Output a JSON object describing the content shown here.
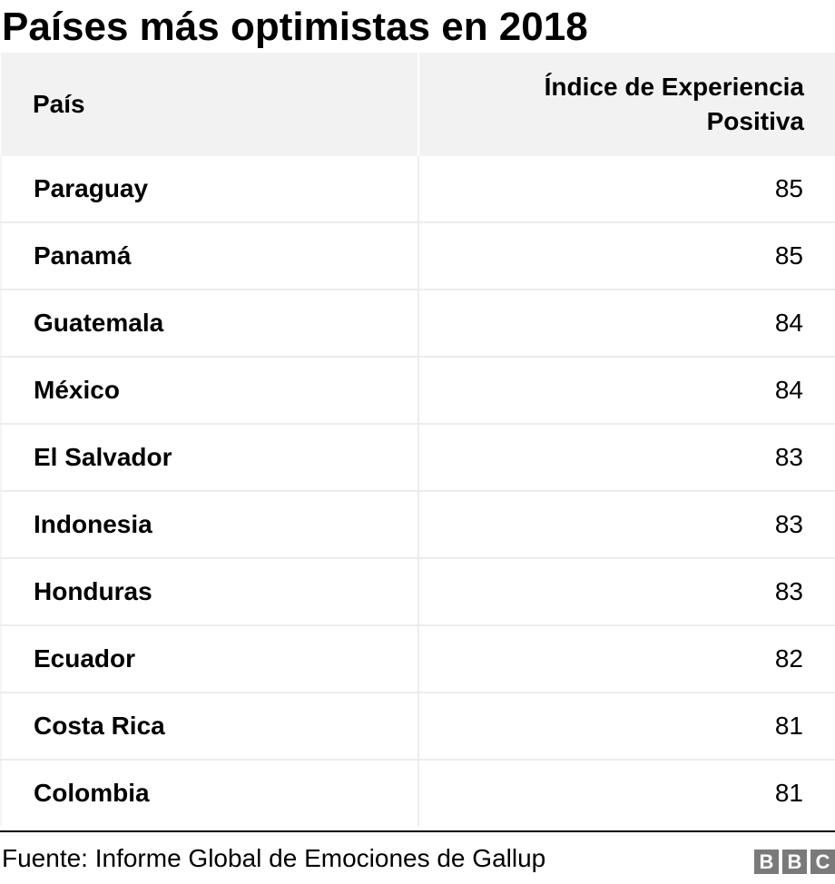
{
  "title": "Países más optimistas en 2018",
  "table": {
    "headers": [
      "País",
      "Índice de Experiencia Positiva"
    ],
    "rows": [
      {
        "country": "Paraguay",
        "value": "85"
      },
      {
        "country": "Panamá",
        "value": "85"
      },
      {
        "country": "Guatemala",
        "value": "84"
      },
      {
        "country": "México",
        "value": "84"
      },
      {
        "country": "El Salvador",
        "value": "83"
      },
      {
        "country": "Indonesia",
        "value": "83"
      },
      {
        "country": "Honduras",
        "value": "83"
      },
      {
        "country": "Ecuador",
        "value": "82"
      },
      {
        "country": "Costa Rica",
        "value": "81"
      },
      {
        "country": "Colombia",
        "value": "81"
      }
    ]
  },
  "source": "Fuente: Informe Global de Emociones de Gallup",
  "logo": [
    "B",
    "B",
    "C"
  ],
  "colors": {
    "header_bg": "#f2f2f2",
    "grid_line": "#ececec",
    "logo_bg": "#7a7a7a"
  },
  "chart_data": {
    "type": "table",
    "title": "Países más optimistas en 2018",
    "columns": [
      "País",
      "Índice de Experiencia Positiva"
    ],
    "rows": [
      [
        "Paraguay",
        85
      ],
      [
        "Panamá",
        85
      ],
      [
        "Guatemala",
        84
      ],
      [
        "México",
        84
      ],
      [
        "El Salvador",
        83
      ],
      [
        "Indonesia",
        83
      ],
      [
        "Honduras",
        83
      ],
      [
        "Ecuador",
        82
      ],
      [
        "Costa Rica",
        81
      ],
      [
        "Colombia",
        81
      ]
    ],
    "source": "Fuente: Informe Global de Emociones de Gallup"
  }
}
